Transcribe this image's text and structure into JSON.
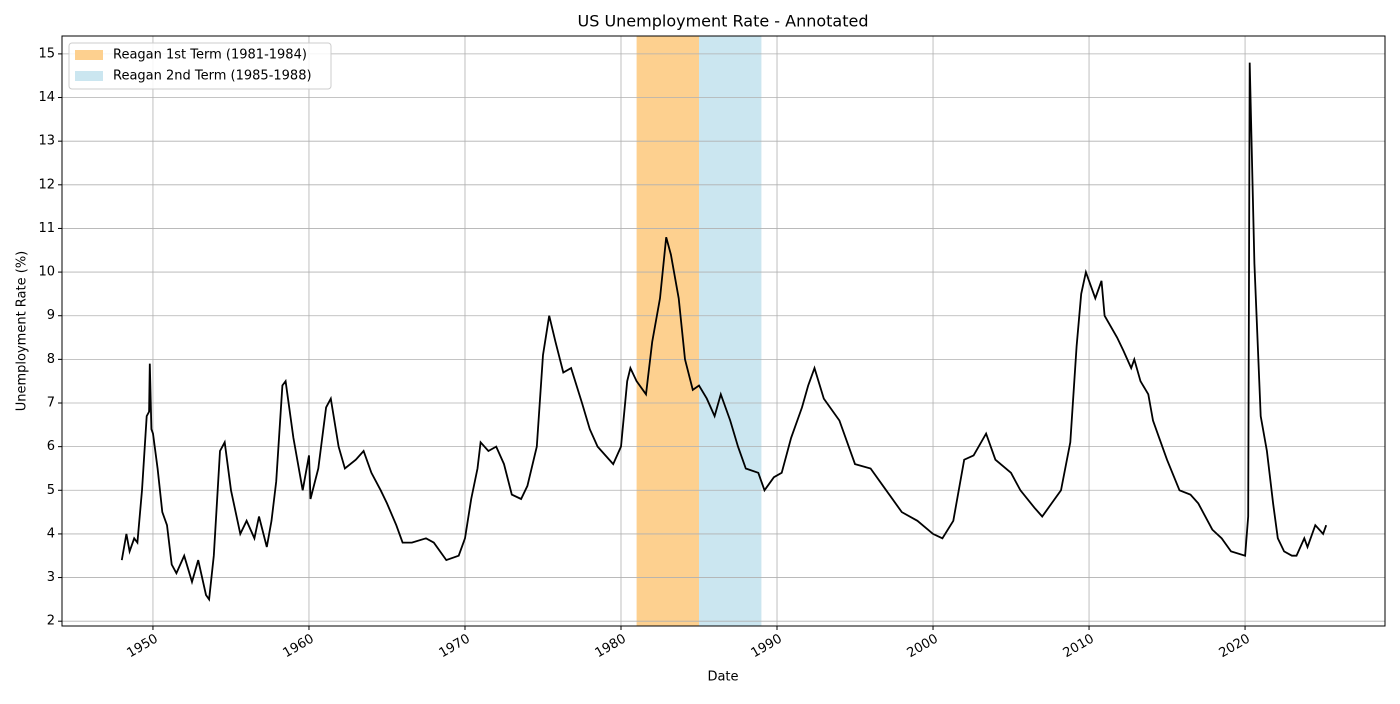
{
  "chart_data": {
    "type": "line",
    "title": "US Unemployment Rate - Annotated",
    "xlabel": "Date",
    "ylabel": "Unemployment Rate (%)",
    "line": {
      "color": "#000000",
      "x": [
        1948.0,
        1948.3,
        1948.5,
        1948.8,
        1949.0,
        1949.3,
        1949.6,
        1949.75,
        1949.8,
        1949.9,
        1950.0,
        1950.3,
        1950.6,
        1950.9,
        1951.2,
        1951.5,
        1952.0,
        1952.5,
        1952.9,
        1953.4,
        1953.6,
        1953.9,
        1954.3,
        1954.6,
        1955.0,
        1955.6,
        1956.0,
        1956.5,
        1956.8,
        1957.3,
        1957.6,
        1957.9,
        1958.3,
        1958.5,
        1959.0,
        1959.6,
        1960.0,
        1960.1,
        1960.6,
        1961.1,
        1961.4,
        1961.9,
        1962.3,
        1963.0,
        1963.5,
        1964.0,
        1964.6,
        1965.0,
        1965.6,
        1966.0,
        1966.6,
        1967.5,
        1968.0,
        1968.8,
        1969.6,
        1970.0,
        1970.4,
        1970.8,
        1971.0,
        1971.5,
        1972.0,
        1972.5,
        1973.0,
        1973.6,
        1974.0,
        1974.6,
        1975.0,
        1975.4,
        1975.8,
        1976.3,
        1976.8,
        1977.5,
        1978.0,
        1978.5,
        1979.0,
        1979.5,
        1980.0,
        1980.4,
        1980.6,
        1981.0,
        1981.6,
        1982.0,
        1982.5,
        1982.9,
        1983.2,
        1983.7,
        1984.1,
        1984.6,
        1985.0,
        1985.5,
        1986.0,
        1986.4,
        1987.0,
        1987.5,
        1988.0,
        1988.8,
        1989.2,
        1989.8,
        1990.3,
        1990.9,
        1991.6,
        1992.0,
        1992.4,
        1993.0,
        1994.0,
        1995.0,
        1996.0,
        1997.0,
        1998.0,
        1999.0,
        2000.0,
        2000.6,
        2001.3,
        2002.0,
        2002.6,
        2003.4,
        2004.0,
        2005.0,
        2005.6,
        2006.5,
        2007.0,
        2007.6,
        2008.2,
        2008.8,
        2009.2,
        2009.5,
        2009.8,
        2010.0,
        2010.4,
        2010.8,
        2011.0,
        2011.8,
        2012.2,
        2012.7,
        2012.9,
        2013.3,
        2013.8,
        2014.1,
        2014.5,
        2015.0,
        2015.8,
        2016.5,
        2017.0,
        2017.9,
        2018.5,
        2019.1,
        2020.0,
        2020.2,
        2020.3,
        2020.6,
        2021.0,
        2021.4,
        2021.8,
        2022.1,
        2022.5,
        2023.0,
        2023.3,
        2023.8,
        2024.0,
        2024.5,
        2025.0,
        2025.2
      ],
      "values": [
        3.4,
        4.0,
        3.6,
        3.9,
        3.8,
        5.0,
        6.7,
        6.8,
        7.9,
        6.4,
        6.3,
        5.5,
        4.5,
        4.2,
        3.3,
        3.1,
        3.5,
        2.9,
        3.4,
        2.6,
        2.5,
        3.5,
        5.9,
        6.1,
        5.0,
        4.0,
        4.3,
        3.9,
        4.4,
        3.7,
        4.3,
        5.2,
        7.4,
        7.5,
        6.2,
        5.0,
        5.8,
        4.8,
        5.5,
        6.9,
        7.1,
        6.0,
        5.5,
        5.7,
        5.9,
        5.4,
        5.0,
        4.7,
        4.2,
        3.8,
        3.8,
        3.9,
        3.8,
        3.4,
        3.5,
        3.9,
        4.8,
        5.5,
        6.1,
        5.9,
        6.0,
        5.6,
        4.9,
        4.8,
        5.1,
        6.0,
        8.1,
        9.0,
        8.4,
        7.7,
        7.8,
        7.0,
        6.4,
        6.0,
        5.8,
        5.6,
        6.0,
        7.5,
        7.8,
        7.5,
        7.2,
        8.4,
        9.4,
        10.8,
        10.4,
        9.4,
        8.0,
        7.3,
        7.4,
        7.1,
        6.7,
        7.2,
        6.6,
        6.0,
        5.5,
        5.4,
        5.0,
        5.3,
        5.4,
        6.2,
        6.9,
        7.4,
        7.8,
        7.1,
        6.6,
        5.6,
        5.5,
        5.0,
        4.5,
        4.3,
        4.0,
        3.9,
        4.3,
        5.7,
        5.8,
        6.3,
        5.7,
        5.4,
        5.0,
        4.6,
        4.4,
        4.7,
        5.0,
        6.1,
        8.3,
        9.5,
        10.0,
        9.8,
        9.4,
        9.8,
        9.0,
        8.5,
        8.2,
        7.8,
        8.0,
        7.5,
        7.2,
        6.6,
        6.2,
        5.7,
        5.0,
        4.9,
        4.7,
        4.1,
        3.9,
        3.6,
        3.5,
        4.4,
        14.8,
        10.2,
        6.7,
        5.9,
        4.7,
        3.9,
        3.6,
        3.5,
        3.5,
        3.9,
        3.7,
        4.2,
        4.0,
        4.2
      ]
    },
    "spans": [
      {
        "label": "Reagan 1st Term (1981-1984)",
        "start": 1981,
        "end": 1985,
        "color": "#fdd08f"
      },
      {
        "label": "Reagan 2nd Term (1985-1988)",
        "start": 1985,
        "end": 1989,
        "color": "#cbe6f0"
      }
    ],
    "xlim": [
      1944.17,
      2028.97
    ],
    "xticks": [
      1950,
      1960,
      1970,
      1980,
      1990,
      2000,
      2010,
      2020
    ],
    "ylim": [
      1.89,
      15.41
    ],
    "yticks": [
      2,
      3,
      4,
      5,
      6,
      7,
      8,
      9,
      10,
      11,
      12,
      13,
      14,
      15
    ],
    "grid": true,
    "legend": "upper left"
  }
}
